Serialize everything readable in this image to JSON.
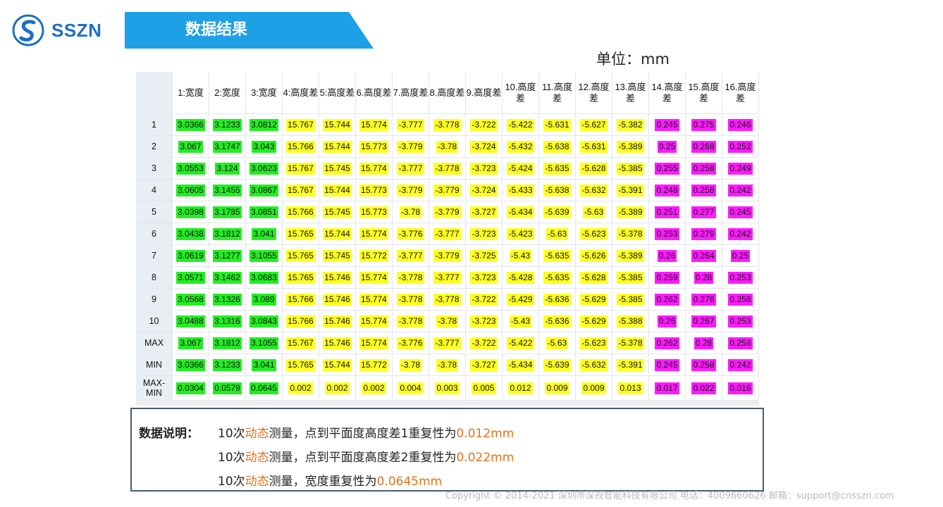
{
  "brand": {
    "name": "SSZN",
    "color": "#1e6fbf"
  },
  "banner": {
    "title": "数据结果",
    "color": "#1ea0e6"
  },
  "unit": "单位：mm",
  "table": {
    "headers": [
      "",
      "1:宽度",
      "2:宽度",
      "3:宽度",
      "4:高度差",
      "5:高度差",
      "6.高度差",
      "7.高度差",
      "8.高度差",
      "9.高度差",
      "10.高度差",
      "11.高度差",
      "12.高度差",
      "13.高度差",
      "14.高度差",
      "15.高度差",
      "16.高度差"
    ],
    "highlight_colors": {
      "width": "#22ee22",
      "height_diff": "#ffff22",
      "height_diff_2": "#ff1aff"
    },
    "rows": [
      {
        "label": "1",
        "values": [
          "3.0366",
          "3.1233",
          "3.0812",
          "15.767",
          "15.744",
          "15.774",
          "-3.777",
          "-3.778",
          "-3.722",
          "-5.422",
          "-5.631",
          "-5.627",
          "-5.382",
          "0.245",
          "0.275",
          "0.246"
        ]
      },
      {
        "label": "2",
        "values": [
          "3.067",
          "3.1747",
          "3.043",
          "15.766",
          "15.744",
          "15.773",
          "-3.779",
          "-3.78",
          "-3.724",
          "-5.432",
          "-5.638",
          "-5.631",
          "-5.389",
          "0.25",
          "0.268",
          "0.252"
        ]
      },
      {
        "label": "3",
        "values": [
          "3.0553",
          "3.124",
          "3.0623",
          "15.767",
          "15.745",
          "15.774",
          "-3.777",
          "-3.778",
          "-3.723",
          "-5.424",
          "-5.635",
          "-5.628",
          "-5.385",
          "0.255",
          "0.258",
          "0.249"
        ]
      },
      {
        "label": "4",
        "values": [
          "3.0605",
          "3.1455",
          "3.0867",
          "15.767",
          "15.744",
          "15.773",
          "-3.779",
          "-3.779",
          "-3.724",
          "-5.433",
          "-5.638",
          "-5.632",
          "-5.391",
          "0.248",
          "0.258",
          "0.242"
        ]
      },
      {
        "label": "5",
        "values": [
          "3.0398",
          "3.1785",
          "3.0851",
          "15.766",
          "15.745",
          "15.773",
          "-3.78",
          "-3.779",
          "-3.727",
          "-5.434",
          "-5.639",
          "-5.63",
          "-5.389",
          "0.251",
          "0.277",
          "0.245"
        ]
      },
      {
        "label": "6",
        "values": [
          "3.0438",
          "3.1812",
          "3.041",
          "15.765",
          "15.744",
          "15.774",
          "-3.776",
          "-3.777",
          "-3.723",
          "-5.423",
          "-5.63",
          "-5.623",
          "-5.378",
          "0.253",
          "0.279",
          "0.242"
        ]
      },
      {
        "label": "7",
        "values": [
          "3.0619",
          "3.1277",
          "3.1055",
          "15.765",
          "15.745",
          "15.772",
          "-3.777",
          "-3.779",
          "-3.725",
          "-5.43",
          "-5.635",
          "-5.626",
          "-5.389",
          "0.26",
          "0.264",
          "0.25"
        ]
      },
      {
        "label": "8",
        "values": [
          "3.0571",
          "3.1462",
          "3.0683",
          "15.765",
          "15.746",
          "15.774",
          "-3.778",
          "-3.777",
          "-3.723",
          "-5.428",
          "-5.635",
          "-5.628",
          "-5.385",
          "0.259",
          "0.28",
          "0.253"
        ]
      },
      {
        "label": "9",
        "values": [
          "3.0568",
          "3.1326",
          "3.089",
          "15.766",
          "15.746",
          "15.774",
          "-3.778",
          "-3.778",
          "-3.722",
          "-5.429",
          "-5.636",
          "-5.629",
          "-5.385",
          "0.262",
          "0.276",
          "0.258"
        ]
      },
      {
        "label": "10",
        "values": [
          "3.0488",
          "3.1316",
          "3.0843",
          "15.766",
          "15.746",
          "15.774",
          "-3.778",
          "-3.78",
          "-3.723",
          "-5.43",
          "-5.636",
          "-5.629",
          "-5.388",
          "0.26",
          "0.267",
          "0.253"
        ]
      },
      {
        "label": "MAX",
        "values": [
          "3.067",
          "3.1812",
          "3.1055",
          "15.767",
          "15.746",
          "15.774",
          "-3.776",
          "-3.777",
          "-3.722",
          "-5.422",
          "-5.63",
          "-5.623",
          "-5.378",
          "0.262",
          "0.28",
          "0.258"
        ]
      },
      {
        "label": "MIN",
        "values": [
          "3.0366",
          "3.1233",
          "3.041",
          "15.765",
          "15.744",
          "15.772",
          "-3.78",
          "-3.78",
          "-3.727",
          "-5.434",
          "-5.639",
          "-5.632",
          "-5.391",
          "0.245",
          "0.258",
          "0.242"
        ]
      },
      {
        "label": "MAX-MIN",
        "values": [
          "0.0304",
          "0.0579",
          "0.0645",
          "0.002",
          "0.002",
          "0.002",
          "0.004",
          "0.003",
          "0.005",
          "0.012",
          "0.009",
          "0.009",
          "0.013",
          "0.017",
          "0.022",
          "0.016"
        ]
      }
    ]
  },
  "note": {
    "label": "数据说明：",
    "accent_color": "#e0731e",
    "lines": [
      {
        "prefix": "10次",
        "accent1": "动态",
        "middle": "测量，点到平面度高度差1重复性为",
        "accent2": "0.012mm"
      },
      {
        "prefix": "10次",
        "accent1": "动态",
        "middle": "测量，点到平面度高度差2重复性为",
        "accent2": "0.022mm"
      },
      {
        "prefix": "10次",
        "accent1": "动态",
        "middle": "测量，宽度重复性为",
        "accent2": "0.0645mm"
      }
    ]
  },
  "footer": "Copyright © 2014-2021 深圳市深视智能科技有限公司 电话：4009660626 邮箱：support@cnsszn.com"
}
